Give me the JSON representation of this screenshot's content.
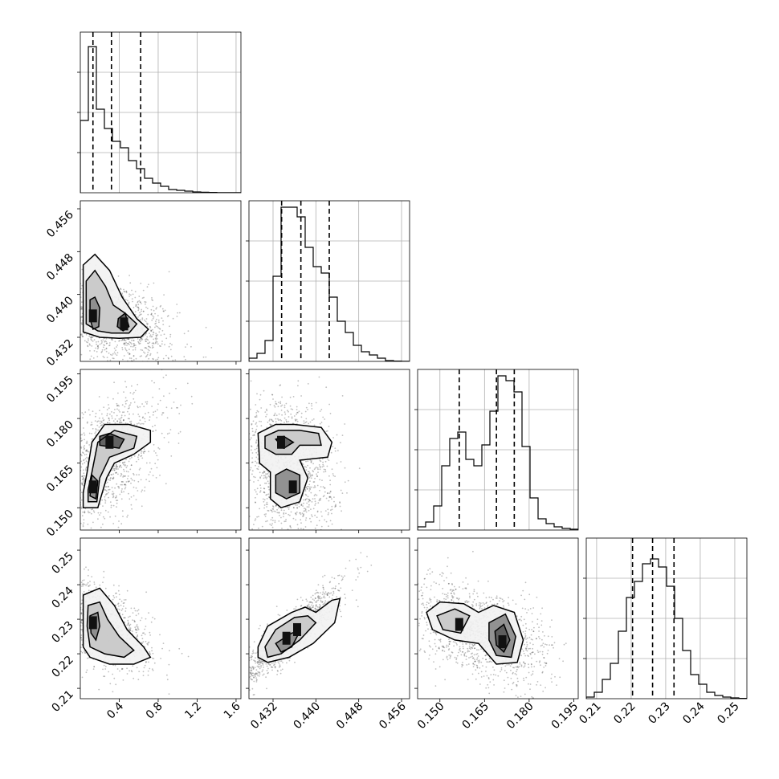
{
  "chart_data": {
    "type": "corner",
    "title": "",
    "parameters": [
      {
        "label": "",
        "range": [
          0.0,
          1.65
        ],
        "ticks": [
          0.4,
          0.8,
          1.2,
          1.6
        ],
        "tick_labels": [
          "0.4",
          "0.8",
          "1.2",
          "1.6"
        ],
        "quantiles": [
          0.13,
          0.32,
          0.62
        ],
        "hist_heights": [
          0.45,
          0.91,
          0.52,
          0.4,
          0.32,
          0.28,
          0.2,
          0.15,
          0.09,
          0.06,
          0.04,
          0.02,
          0.015,
          0.01,
          0.005,
          0.003,
          0.002,
          0.001,
          0.001,
          0.0005
        ]
      },
      {
        "label": "",
        "range": [
          0.4275,
          0.4575
        ],
        "ticks": [
          0.432,
          0.44,
          0.448,
          0.456
        ],
        "tick_labels": [
          "0.432",
          "0.440",
          "0.448",
          "0.456"
        ],
        "quantiles": [
          0.4336,
          0.4372,
          0.4425
        ],
        "hist_heights": [
          0.02,
          0.05,
          0.13,
          0.53,
          0.96,
          0.96,
          0.9,
          0.71,
          0.59,
          0.55,
          0.4,
          0.25,
          0.18,
          0.1,
          0.06,
          0.04,
          0.02,
          0.005,
          0.002,
          0.001
        ]
      },
      {
        "label": "",
        "range": [
          0.1425,
          0.1965
        ],
        "ticks": [
          0.15,
          0.165,
          0.18,
          0.195
        ],
        "tick_labels": [
          "0.150",
          "0.165",
          "0.180",
          "0.195"
        ],
        "quantiles": [
          0.1565,
          0.169,
          0.175
        ],
        "hist_heights": [
          0.02,
          0.05,
          0.15,
          0.4,
          0.57,
          0.61,
          0.44,
          0.4,
          0.53,
          0.74,
          0.96,
          0.93,
          0.86,
          0.52,
          0.2,
          0.07,
          0.04,
          0.02,
          0.01,
          0.005
        ]
      },
      {
        "label": "",
        "range": [
          0.207,
          0.2535
        ],
        "ticks": [
          0.21,
          0.22,
          0.23,
          0.24,
          0.25
        ],
        "tick_labels": [
          "0.21",
          "0.22",
          "0.23",
          "0.24",
          "0.25"
        ],
        "quantiles": [
          0.2204,
          0.2262,
          0.2324
        ],
        "hist_heights": [
          0.01,
          0.04,
          0.12,
          0.22,
          0.42,
          0.63,
          0.73,
          0.84,
          0.87,
          0.82,
          0.7,
          0.5,
          0.3,
          0.15,
          0.09,
          0.04,
          0.02,
          0.01,
          0.005,
          0.002
        ]
      }
    ],
    "pairs": [
      {
        "x": 0,
        "y": 1,
        "scatter_spread": [
          0.28,
          0.0042
        ],
        "correlation": -0.45,
        "density_peaks": [
          [
            0.13,
            0.436
          ],
          [
            0.45,
            0.4345
          ]
        ],
        "contours": [
          [
            [
              0.03,
              0.4455
            ],
            [
              0.15,
              0.4475
            ],
            [
              0.3,
              0.4445
            ],
            [
              0.43,
              0.4395
            ],
            [
              0.58,
              0.4355
            ],
            [
              0.7,
              0.4335
            ],
            [
              0.62,
              0.432
            ],
            [
              0.4,
              0.4318
            ],
            [
              0.2,
              0.432
            ],
            [
              0.03,
              0.433
            ]
          ],
          [
            [
              0.06,
              0.4425
            ],
            [
              0.15,
              0.4445
            ],
            [
              0.26,
              0.4415
            ],
            [
              0.34,
              0.438
            ],
            [
              0.46,
              0.4365
            ],
            [
              0.58,
              0.4345
            ],
            [
              0.5,
              0.4328
            ],
            [
              0.32,
              0.4328
            ],
            [
              0.18,
              0.4332
            ],
            [
              0.06,
              0.4345
            ]
          ],
          [
            [
              0.1,
              0.439
            ],
            [
              0.15,
              0.4395
            ],
            [
              0.2,
              0.4375
            ],
            [
              0.19,
              0.434
            ],
            [
              0.13,
              0.4335
            ],
            [
              0.1,
              0.4355
            ]
          ],
          [
            [
              0.39,
              0.4355
            ],
            [
              0.46,
              0.4365
            ],
            [
              0.5,
              0.434
            ],
            [
              0.44,
              0.4332
            ],
            [
              0.38,
              0.434
            ]
          ]
        ]
      },
      {
        "x": 0,
        "y": 2,
        "scatter_spread": [
          0.28,
          0.0085
        ],
        "correlation": 0.45,
        "density_peaks": [
          [
            0.13,
            0.157
          ],
          [
            0.3,
            0.172
          ]
        ],
        "contours": [
          [
            [
              0.03,
              0.15
            ],
            [
              0.18,
              0.15
            ],
            [
              0.27,
              0.16
            ],
            [
              0.35,
              0.165
            ],
            [
              0.55,
              0.168
            ],
            [
              0.72,
              0.172
            ],
            [
              0.72,
              0.176
            ],
            [
              0.5,
              0.178
            ],
            [
              0.25,
              0.178
            ],
            [
              0.12,
              0.172
            ],
            [
              0.07,
              0.162
            ],
            [
              0.03,
              0.155
            ]
          ],
          [
            [
              0.08,
              0.152
            ],
            [
              0.17,
              0.152
            ],
            [
              0.2,
              0.16
            ],
            [
              0.3,
              0.167
            ],
            [
              0.55,
              0.17
            ],
            [
              0.58,
              0.174
            ],
            [
              0.35,
              0.176
            ],
            [
              0.18,
              0.172
            ],
            [
              0.12,
              0.162
            ],
            [
              0.08,
              0.156
            ]
          ],
          [
            [
              0.1,
              0.154
            ],
            [
              0.16,
              0.153
            ],
            [
              0.18,
              0.159
            ],
            [
              0.12,
              0.161
            ]
          ],
          [
            [
              0.2,
              0.171
            ],
            [
              0.4,
              0.17
            ],
            [
              0.45,
              0.173
            ],
            [
              0.3,
              0.175
            ],
            [
              0.2,
              0.174
            ]
          ]
        ]
      },
      {
        "x": 0,
        "y": 3,
        "scatter_spread": [
          0.3,
          0.0065
        ],
        "correlation": -0.55,
        "density_peaks": [
          [
            0.13,
            0.229
          ]
        ],
        "contours": [
          [
            [
              0.03,
              0.237
            ],
            [
              0.2,
              0.239
            ],
            [
              0.35,
              0.234
            ],
            [
              0.48,
              0.227
            ],
            [
              0.65,
              0.222
            ],
            [
              0.72,
              0.219
            ],
            [
              0.55,
              0.217
            ],
            [
              0.3,
              0.217
            ],
            [
              0.1,
              0.219
            ],
            [
              0.03,
              0.222
            ]
          ],
          [
            [
              0.08,
              0.234
            ],
            [
              0.2,
              0.235
            ],
            [
              0.28,
              0.23
            ],
            [
              0.4,
              0.225
            ],
            [
              0.55,
              0.221
            ],
            [
              0.45,
              0.219
            ],
            [
              0.25,
              0.22
            ],
            [
              0.1,
              0.222
            ],
            [
              0.07,
              0.228
            ]
          ],
          [
            [
              0.1,
              0.231
            ],
            [
              0.18,
              0.232
            ],
            [
              0.2,
              0.228
            ],
            [
              0.16,
              0.224
            ],
            [
              0.11,
              0.226
            ]
          ]
        ]
      },
      {
        "x": 1,
        "y": 2,
        "scatter_spread": [
          0.0042,
          0.0085
        ],
        "correlation": 0.0,
        "density_peaks": [
          [
            0.4335,
            0.172
          ],
          [
            0.4357,
            0.157
          ]
        ],
        "contours": [
          [
            [
              0.4292,
              0.175
            ],
            [
              0.4325,
              0.178
            ],
            [
              0.436,
              0.178
            ],
            [
              0.441,
              0.177
            ],
            [
              0.443,
              0.172
            ],
            [
              0.4422,
              0.167
            ],
            [
              0.437,
              0.166
            ],
            [
              0.4385,
              0.16
            ],
            [
              0.437,
              0.152
            ],
            [
              0.4335,
              0.15
            ],
            [
              0.4315,
              0.153
            ],
            [
              0.4315,
              0.162
            ],
            [
              0.4295,
              0.165
            ]
          ],
          [
            [
              0.4305,
              0.174
            ],
            [
              0.433,
              0.176
            ],
            [
              0.437,
              0.176
            ],
            [
              0.4405,
              0.175
            ],
            [
              0.441,
              0.171
            ],
            [
              0.437,
              0.171
            ],
            [
              0.4355,
              0.168
            ],
            [
              0.4325,
              0.168
            ],
            [
              0.4305,
              0.17
            ]
          ],
          [
            [
              0.4325,
              0.161
            ],
            [
              0.4345,
              0.163
            ],
            [
              0.437,
              0.161
            ],
            [
              0.437,
              0.155
            ],
            [
              0.4345,
              0.153
            ],
            [
              0.4325,
              0.155
            ]
          ],
          [
            [
              0.4325,
              0.173
            ],
            [
              0.434,
              0.174
            ],
            [
              0.4358,
              0.172
            ],
            [
              0.434,
              0.17
            ]
          ]
        ]
      },
      {
        "x": 1,
        "y": 3,
        "scatter_spread": [
          0.0042,
          0.0065
        ],
        "correlation": 0.88,
        "density_peaks": [
          [
            0.4345,
            0.2245
          ],
          [
            0.4365,
            0.227
          ]
        ],
        "contours": [
          [
            [
              0.4292,
              0.222
            ],
            [
              0.431,
              0.228
            ],
            [
              0.4355,
              0.232
            ],
            [
              0.438,
              0.2335
            ],
            [
              0.44,
              0.232
            ],
            [
              0.443,
              0.2355
            ],
            [
              0.4445,
              0.236
            ],
            [
              0.4435,
              0.229
            ],
            [
              0.4395,
              0.223
            ],
            [
              0.435,
              0.219
            ],
            [
              0.431,
              0.2175
            ],
            [
              0.4292,
              0.219
            ]
          ],
          [
            [
              0.4305,
              0.222
            ],
            [
              0.4325,
              0.227
            ],
            [
              0.436,
              0.2305
            ],
            [
              0.4385,
              0.231
            ],
            [
              0.44,
              0.229
            ],
            [
              0.437,
              0.224
            ],
            [
              0.4335,
              0.22
            ],
            [
              0.431,
              0.219
            ]
          ],
          [
            [
              0.4325,
              0.223
            ],
            [
              0.4355,
              0.226
            ],
            [
              0.437,
              0.2265
            ],
            [
              0.4355,
              0.222
            ],
            [
              0.4335,
              0.2205
            ]
          ]
        ]
      },
      {
        "x": 2,
        "y": 3,
        "scatter_spread": [
          0.0085,
          0.0065
        ],
        "correlation": -0.35,
        "density_peaks": [
          [
            0.1565,
            0.2285
          ],
          [
            0.171,
            0.2235
          ]
        ],
        "contours": [
          [
            [
              0.1455,
              0.232
            ],
            [
              0.15,
              0.235
            ],
            [
              0.158,
              0.2345
            ],
            [
              0.163,
              0.232
            ],
            [
              0.168,
              0.234
            ],
            [
              0.175,
              0.232
            ],
            [
              0.178,
              0.224
            ],
            [
              0.176,
              0.2175
            ],
            [
              0.169,
              0.217
            ],
            [
              0.163,
              0.223
            ],
            [
              0.155,
              0.224
            ],
            [
              0.1475,
              0.227
            ]
          ],
          [
            [
              0.149,
              0.231
            ],
            [
              0.155,
              0.233
            ],
            [
              0.16,
              0.231
            ],
            [
              0.157,
              0.226
            ],
            [
              0.151,
              0.227
            ]
          ],
          [
            [
              0.1665,
              0.229
            ],
            [
              0.172,
              0.2315
            ],
            [
              0.1755,
              0.225
            ],
            [
              0.174,
              0.219
            ],
            [
              0.169,
              0.2195
            ],
            [
              0.1665,
              0.224
            ]
          ],
          [
            [
              0.1685,
              0.2265
            ],
            [
              0.1715,
              0.2285
            ],
            [
              0.1735,
              0.224
            ],
            [
              0.1715,
              0.2205
            ],
            [
              0.169,
              0.2225
            ]
          ]
        ]
      }
    ],
    "grid": true,
    "legend": "none",
    "xlabel": "",
    "ylabel": ""
  }
}
